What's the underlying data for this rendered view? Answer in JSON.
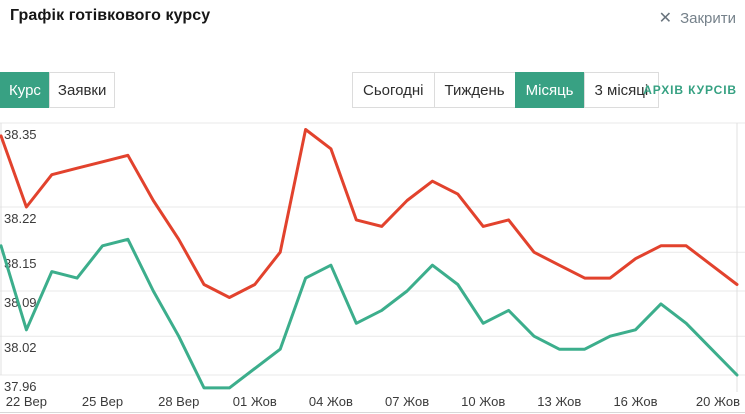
{
  "header": {
    "title": "Графік готівкового курсу",
    "close_icon": "✕",
    "close_label": "Закрити"
  },
  "tabs": [
    {
      "label": "Курс",
      "active": true
    },
    {
      "label": "Заявки",
      "active": false
    }
  ],
  "periods": [
    {
      "label": "Сьогодні",
      "active": false
    },
    {
      "label": "Тиждень",
      "active": false
    },
    {
      "label": "Місяць",
      "active": true
    },
    {
      "label": "3 місяці",
      "active": false
    }
  ],
  "archive": {
    "label": "АРХІВ КУРСІВ"
  },
  "colors": {
    "accent_green": "#38a183",
    "link_green": "#36a182",
    "line_red": "#e2422d",
    "line_green": "#3cae8c",
    "grid": "#e9e9e9",
    "plot_border": "#e0e0e0",
    "bottom_divider": "#d8d8d8",
    "axis_text": "#3b3b3b"
  },
  "chart_data": {
    "type": "line",
    "title": "Графік готівкового курсу",
    "xlabel": "",
    "ylabel": "",
    "grid": "horizontal",
    "legend": "none",
    "y_ticks": [
      38.35,
      38.22,
      38.15,
      38.09,
      38.02,
      37.96
    ],
    "ylim": [
      37.96,
      38.35
    ],
    "x": [
      "21.09",
      "22.09",
      "23.09",
      "24.09",
      "25.09",
      "26.09",
      "27.09",
      "28.09",
      "29.09",
      "30.09",
      "01.10",
      "02.10",
      "03.10",
      "04.10",
      "05.10",
      "06.10",
      "07.10",
      "08.10",
      "09.10",
      "10.10",
      "11.10",
      "12.10",
      "13.10",
      "14.10",
      "15.10",
      "16.10",
      "17.10",
      "18.10",
      "19.10",
      "20.10"
    ],
    "x_tick_labels": [
      {
        "index": 1,
        "label": "22 Вер"
      },
      {
        "index": 4,
        "label": "25 Вер"
      },
      {
        "index": 7,
        "label": "28 Вер"
      },
      {
        "index": 10,
        "label": "01 Жов"
      },
      {
        "index": 13,
        "label": "04 Жов"
      },
      {
        "index": 16,
        "label": "07 Жов"
      },
      {
        "index": 19,
        "label": "10 Жов"
      },
      {
        "index": 22,
        "label": "13 Жов"
      },
      {
        "index": 25,
        "label": "16 Жов"
      },
      {
        "index": 29,
        "label": "20 Жов"
      }
    ],
    "series": [
      {
        "name": "red",
        "color": "#e2422d",
        "values": [
          38.33,
          38.22,
          38.27,
          38.28,
          38.29,
          38.3,
          38.23,
          38.17,
          38.1,
          38.08,
          38.1,
          38.15,
          38.34,
          38.31,
          38.2,
          38.19,
          38.23,
          38.26,
          38.24,
          38.19,
          38.2,
          38.15,
          38.13,
          38.11,
          38.11,
          38.14,
          38.16,
          38.16,
          38.13,
          38.1
        ]
      },
      {
        "name": "green",
        "color": "#3cae8c",
        "values": [
          38.16,
          38.03,
          38.12,
          38.11,
          38.16,
          38.17,
          38.09,
          38.02,
          37.94,
          37.94,
          37.97,
          38.0,
          38.11,
          38.13,
          38.04,
          38.06,
          38.09,
          38.13,
          38.1,
          38.04,
          38.06,
          38.02,
          38.0,
          38.0,
          38.02,
          38.03,
          38.07,
          38.04,
          38.0,
          37.96
        ]
      }
    ]
  }
}
